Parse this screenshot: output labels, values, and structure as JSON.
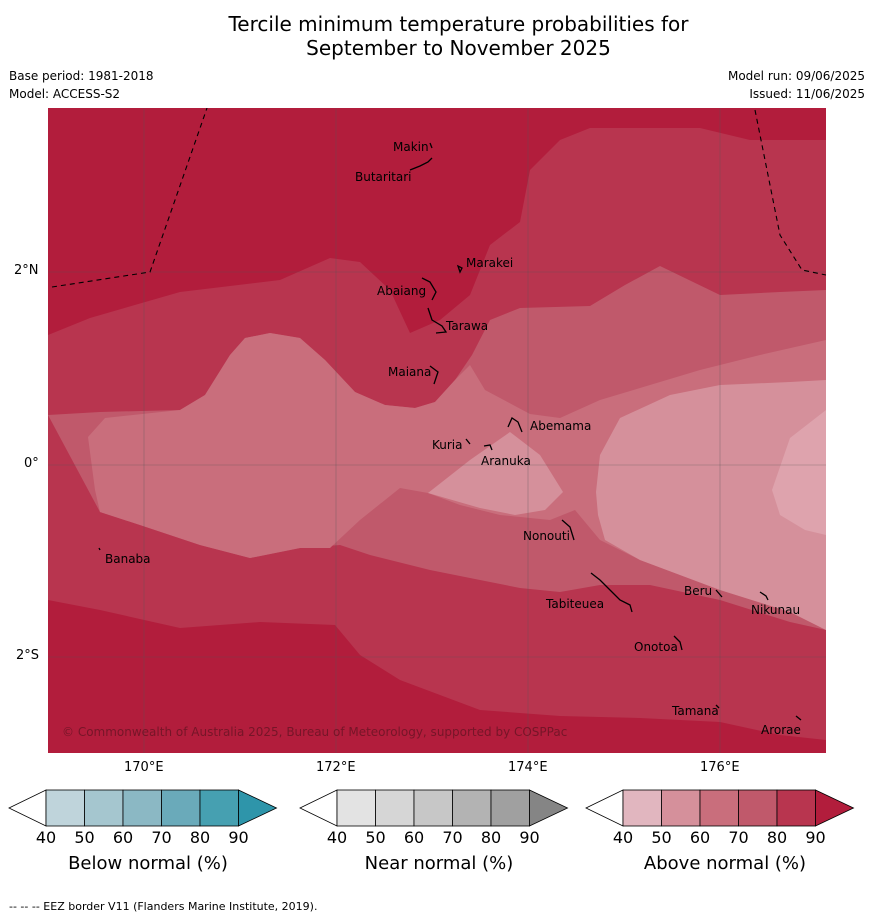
{
  "title_line1": "Tercile minimum temperature probabilities for",
  "title_line2": "September to November 2025",
  "base_period": "Base period: 1981-2018",
  "model": "Model: ACCESS-S2",
  "model_run": "Model run: 09/06/2025",
  "issued": "Issued: 11/06/2025",
  "copyright": "© Commonwealth of Australia 2025, Bureau of Meteorology, supported by COSPPac",
  "lat_labels": [
    "2°N",
    "0°",
    "2°S"
  ],
  "lon_labels": [
    "170°E",
    "172°E",
    "174°E",
    "176°E"
  ],
  "places": [
    "Makin",
    "Butaritari",
    "Marakei",
    "Abaiang",
    "Tarawa",
    "Maiana",
    "Abemama",
    "Kuria",
    "Aranuka",
    "Banaba",
    "Nonouti",
    "Tabiteuea",
    "Beru",
    "Nikunau",
    "Onotoa",
    "Tamana",
    "Arorae"
  ],
  "colorbars": [
    {
      "title": "Below normal (%)",
      "ticks": [
        "40",
        "50",
        "60",
        "70",
        "80",
        "90"
      ],
      "colors": [
        "#ffffff",
        "#bfd4db",
        "#a5c6cf",
        "#8bb8c4",
        "#6aaaba",
        "#46a0b1",
        "#2e95aa"
      ]
    },
    {
      "title": "Near normal (%)",
      "ticks": [
        "40",
        "50",
        "60",
        "70",
        "80",
        "90"
      ],
      "colors": [
        "#ffffff",
        "#e3e3e3",
        "#d6d6d6",
        "#c7c7c7",
        "#b3b3b3",
        "#a0a0a0",
        "#858585"
      ]
    },
    {
      "title": "Above normal (%)",
      "ticks": [
        "40",
        "50",
        "60",
        "70",
        "80",
        "90"
      ],
      "colors": [
        "#ffffff",
        "#e1b6bf",
        "#d5909b",
        "#c96e7c",
        "#c0596b",
        "#b8354f",
        "#b21d3c"
      ]
    }
  ],
  "footer": "--  --  -- EEZ border V11 (Flanders Marine Institute, 2019)."
}
